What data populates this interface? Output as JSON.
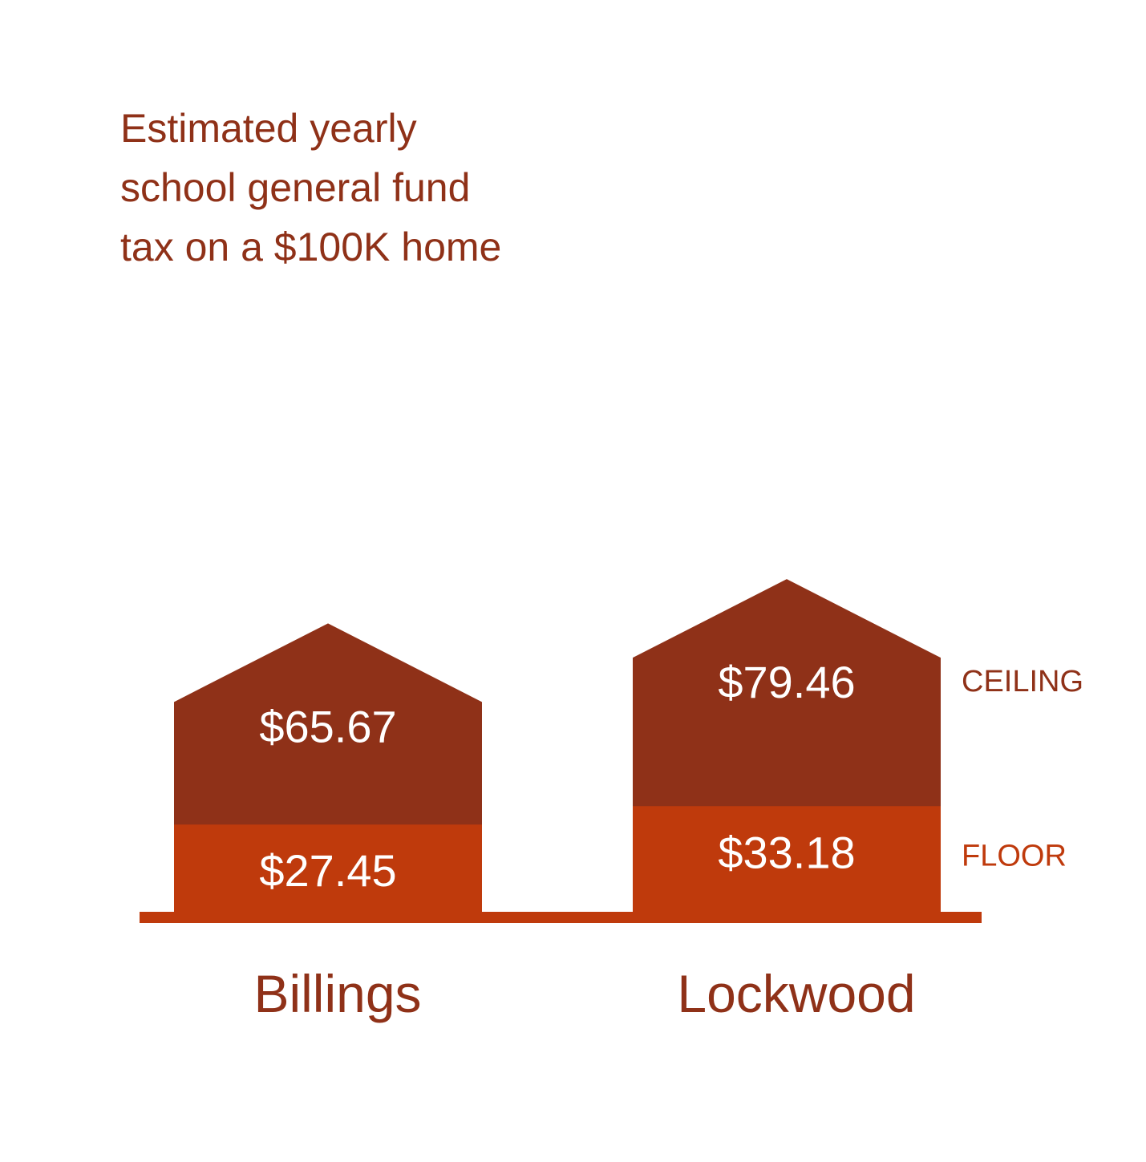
{
  "chart_data": {
    "type": "bar",
    "stacked": false,
    "title_lines": [
      "Estimated yearly",
      "school general fund",
      "tax on a $100K home"
    ],
    "categories": [
      "Billings",
      "Lockwood"
    ],
    "series": [
      {
        "name": "FLOOR",
        "values": [
          27.45,
          33.18
        ],
        "labels": [
          "$27.45",
          "$33.18"
        ],
        "color": "#bf3a0c"
      },
      {
        "name": "CEILING",
        "values": [
          65.67,
          79.46
        ],
        "labels": [
          "$65.67",
          "$79.46"
        ],
        "color": "#8f3118"
      }
    ],
    "legend_placement": "right",
    "grid": false
  },
  "colors": {
    "title": "#8f3118",
    "axis": "#bf3a0c",
    "category_label": "#8f3118",
    "value_label": "#ffffff",
    "background": "#ffffff"
  }
}
